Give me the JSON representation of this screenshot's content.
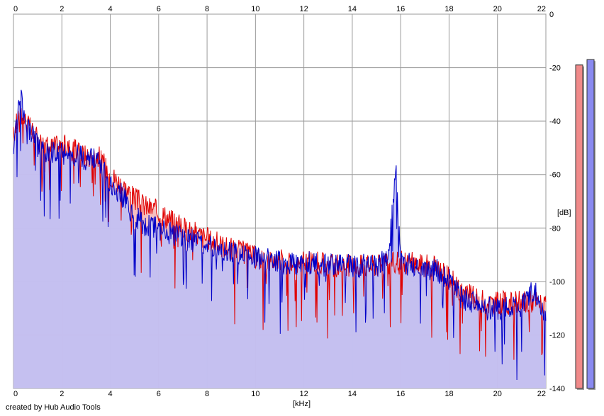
{
  "app": {
    "credit": "created by Hub Audio Tools"
  },
  "colors": {
    "background": "#ffffff",
    "plot_bg": "#ffffff",
    "grid": "#9a9a9a",
    "left_line": "#e00000",
    "left_fill": "#f5b5b5",
    "right_line": "#0000c8",
    "right_fill": "#c0c0f5",
    "meter_left": "#f08a8a",
    "meter_right": "#8a8af0"
  },
  "chart_data": {
    "type": "area",
    "xlabel": "[kHz]",
    "ylabel": "[dB]",
    "xlim": [
      0,
      22
    ],
    "ylim": [
      -140,
      0
    ],
    "x_ticks": [
      "0",
      "2",
      "4",
      "6",
      "8",
      "10",
      "12",
      "14",
      "16",
      "18",
      "20",
      "22"
    ],
    "y_ticks": [
      "0",
      "-20",
      "-40",
      "-60",
      "-80",
      "-100",
      "-120",
      "-140"
    ],
    "grid": true,
    "x": [
      0,
      0.25,
      0.5,
      0.75,
      1,
      1.5,
      2,
      2.5,
      3,
      3.5,
      4,
      4.5,
      5,
      5.5,
      6,
      6.5,
      7,
      7.5,
      8,
      8.5,
      9,
      9.5,
      10,
      10.5,
      11,
      11.5,
      12,
      12.5,
      13,
      13.5,
      14,
      14.5,
      15,
      15.5,
      15.8,
      16,
      16.5,
      17,
      17.5,
      18,
      18.5,
      19,
      19.5,
      20,
      20.5,
      21,
      21.5,
      22
    ],
    "series": [
      {
        "values": [
          -46,
          -36,
          -40,
          -44,
          -47,
          -50,
          -49,
          -51,
          -53,
          -53,
          -60,
          -64,
          -69,
          -72,
          -74,
          -77,
          -80,
          -82,
          -84,
          -86,
          -88,
          -89,
          -91,
          -92,
          -92,
          -93,
          -93,
          -93,
          -94,
          -94,
          -94,
          -94,
          -94,
          -94,
          -93,
          -93,
          -93,
          -94,
          -95,
          -98,
          -104,
          -106,
          -108,
          -108,
          -108,
          -108,
          -107,
          -110
        ]
      },
      {
        "values": [
          -48,
          -30,
          -40,
          -45,
          -50,
          -52,
          -52,
          -53,
          -54,
          -55,
          -64,
          -68,
          -76,
          -79,
          -80,
          -82,
          -84,
          -85,
          -86,
          -88,
          -89,
          -90,
          -91,
          -92,
          -93,
          -93,
          -93,
          -93,
          -94,
          -94,
          -94,
          -94,
          -94,
          -92,
          -57,
          -93,
          -94,
          -95,
          -96,
          -99,
          -106,
          -108,
          -110,
          -110,
          -110,
          -109,
          -103,
          -112
        ]
      }
    ],
    "meters": [
      -19,
      -17
    ]
  }
}
